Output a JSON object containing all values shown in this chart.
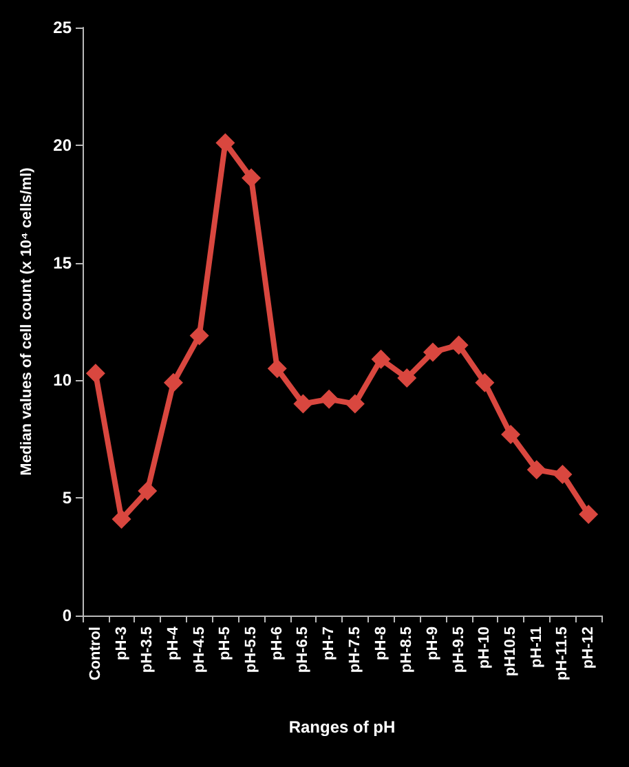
{
  "chart_data": {
    "type": "line",
    "xlabel": "Ranges of pH",
    "ylabel": "Median values of cell count (x 10⁴ cells/ml)",
    "categories": [
      "Control",
      "pH-3",
      "pH-3.5",
      "pH-4",
      "pH-4.5",
      "pH-5",
      "pH-5.5",
      "pH-6",
      "pH-6.5",
      "pH-7",
      "pH-7.5",
      "pH-8",
      "pH-8.5",
      "pH-9",
      "pH-9.5",
      "pH-10",
      "pH10.5",
      "pH-11",
      "pH-11.5",
      "pH-12"
    ],
    "series": [
      {
        "color": "#d9473f",
        "values": [
          10.3,
          4.1,
          5.3,
          9.9,
          11.9,
          20.1,
          18.6,
          10.5,
          9.0,
          9.2,
          9.0,
          10.9,
          10.1,
          11.2,
          11.5,
          9.9,
          7.7,
          6.2,
          6.0,
          4.3
        ]
      }
    ],
    "ylim": [
      0,
      25
    ],
    "yticks": [
      0,
      5,
      10,
      15,
      20,
      25
    ],
    "grid": false,
    "marker": "diamond",
    "line_style": "solid"
  }
}
